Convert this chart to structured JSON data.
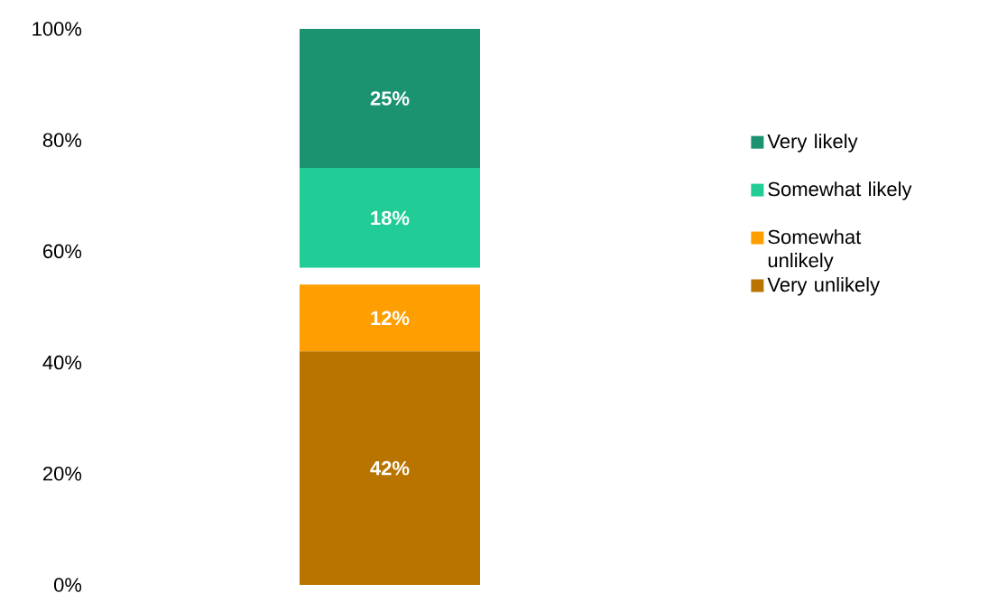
{
  "chart_data": {
    "type": "bar",
    "stacked": true,
    "categories": [
      null
    ],
    "series": [
      {
        "name": "Very unlikely",
        "color": "#b97400",
        "values": [
          42
        ],
        "value_labels": [
          "42%"
        ]
      },
      {
        "name": "Somewhat unlikely",
        "color": "#ff9e00",
        "values": [
          12
        ],
        "value_labels": [
          "12%"
        ]
      },
      {
        "color": "#ffffff",
        "values": [
          3
        ],
        "value_labels": [
          null
        ]
      },
      {
        "name": "Somewhat likely",
        "color": "#21cc96",
        "values": [
          18
        ],
        "value_labels": [
          "18%"
        ]
      },
      {
        "name": "Very likely",
        "color": "#1b9270",
        "values": [
          25
        ],
        "value_labels": [
          "25%"
        ]
      }
    ],
    "ylim": [
      0,
      100
    ],
    "yticks": [
      {
        "value": 0,
        "label": "0%"
      },
      {
        "value": 20,
        "label": "20%"
      },
      {
        "value": 40,
        "label": "40%"
      },
      {
        "value": 60,
        "label": "60%"
      },
      {
        "value": 80,
        "label": "80%"
      },
      {
        "value": 100,
        "label": "100%"
      }
    ],
    "grid": false,
    "legend": "right"
  }
}
